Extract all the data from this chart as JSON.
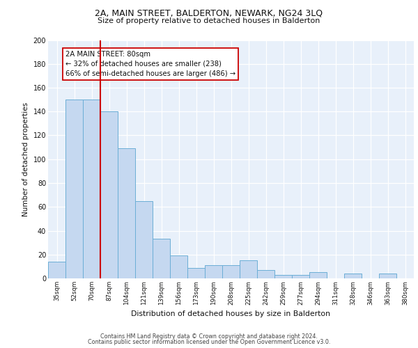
{
  "title1": "2A, MAIN STREET, BALDERTON, NEWARK, NG24 3LQ",
  "title2": "Size of property relative to detached houses in Balderton",
  "xlabel": "Distribution of detached houses by size in Balderton",
  "ylabel": "Number of detached properties",
  "categories": [
    "35sqm",
    "52sqm",
    "70sqm",
    "87sqm",
    "104sqm",
    "121sqm",
    "139sqm",
    "156sqm",
    "173sqm",
    "190sqm",
    "208sqm",
    "225sqm",
    "242sqm",
    "259sqm",
    "277sqm",
    "294sqm",
    "311sqm",
    "328sqm",
    "346sqm",
    "363sqm",
    "380sqm"
  ],
  "values": [
    14,
    150,
    150,
    140,
    109,
    65,
    33,
    19,
    9,
    11,
    11,
    15,
    7,
    3,
    3,
    5,
    0,
    4,
    0,
    4,
    0
  ],
  "bar_color": "#c5d8f0",
  "bar_edge_color": "#6baed6",
  "annotation_text_line1": "2A MAIN STREET: 80sqm",
  "annotation_text_line2": "← 32% of detached houses are smaller (238)",
  "annotation_text_line3": "66% of semi-detached houses are larger (486) →",
  "annotation_box_color": "#ffffff",
  "annotation_box_edge": "#cc0000",
  "vline_color": "#cc0000",
  "ylim": [
    0,
    200
  ],
  "yticks": [
    0,
    20,
    40,
    60,
    80,
    100,
    120,
    140,
    160,
    180,
    200
  ],
  "bg_color": "#e8f0fa",
  "footer1": "Contains HM Land Registry data © Crown copyright and database right 2024.",
  "footer2": "Contains public sector information licensed under the Open Government Licence v3.0."
}
